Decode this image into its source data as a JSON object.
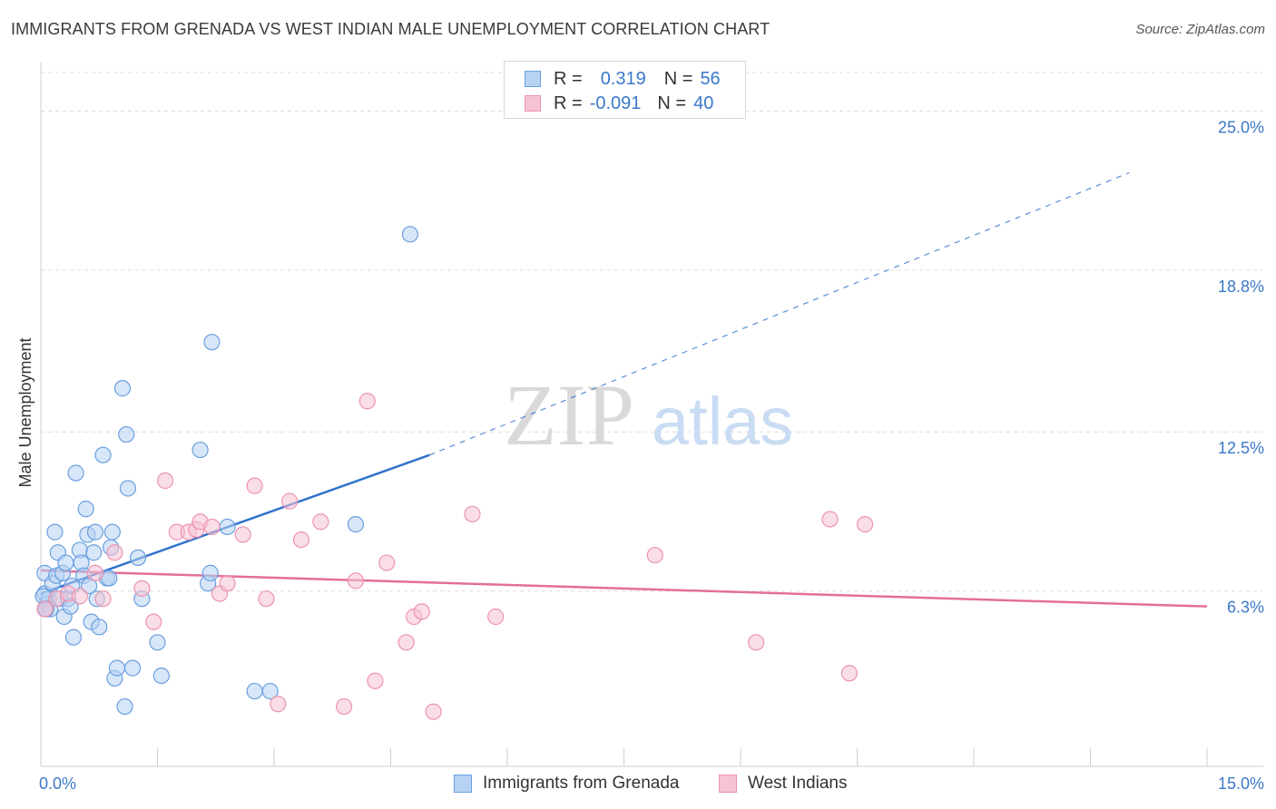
{
  "title": "IMMIGRANTS FROM GRENADA VS WEST INDIAN MALE UNEMPLOYMENT CORRELATION CHART",
  "source": "Source: ZipAtlas.com",
  "watermark": {
    "zip": "ZIP",
    "atlas": "atlas"
  },
  "legend": {
    "rows": [
      {
        "r_label": "R =",
        "r_value": "0.319",
        "n_label": "N =",
        "n_value": "56"
      },
      {
        "r_label": "R =",
        "r_value": "-0.091",
        "n_label": "N =",
        "n_value": "40"
      }
    ]
  },
  "bottom_legend": {
    "series1": "Immigrants from Grenada",
    "series2": "West Indians"
  },
  "colors": {
    "blue_fill": "#b7d2f3",
    "blue_stroke": "#6a9fe0",
    "blue_line": "#2f72cc",
    "pink_fill": "#f6c3d3",
    "pink_stroke": "#ec93b0",
    "pink_line": "#e36f9a",
    "tick_label": "#3b78c9",
    "grid": "#dcdcdc"
  },
  "chart_data": {
    "type": "scatter",
    "title": "IMMIGRANTS FROM GRENADA VS WEST INDIAN MALE UNEMPLOYMENT CORRELATION CHART",
    "xlabel": "",
    "ylabel": "Male Unemployment",
    "xlim": [
      0,
      15
    ],
    "ylim": [
      0,
      26.5
    ],
    "x_tick_labels": [
      "0.0%",
      "15.0%"
    ],
    "y_ticks": [
      6.3,
      12.5,
      18.8,
      25.0
    ],
    "y_tick_labels": [
      "6.3%",
      "12.5%",
      "18.8%",
      "25.0%"
    ],
    "grid": "horizontal dashed",
    "legend_position": "top-center",
    "series": [
      {
        "name": "Immigrants from Grenada",
        "R": 0.319,
        "N": 56,
        "points": [
          [
            0.05,
            7.0
          ],
          [
            0.05,
            6.2
          ],
          [
            0.08,
            5.8
          ],
          [
            0.1,
            6.0
          ],
          [
            0.12,
            5.6
          ],
          [
            0.15,
            6.6
          ],
          [
            0.18,
            8.6
          ],
          [
            0.2,
            6.9
          ],
          [
            0.22,
            7.8
          ],
          [
            0.25,
            6.0
          ],
          [
            0.28,
            7.0
          ],
          [
            0.3,
            5.3
          ],
          [
            0.32,
            7.4
          ],
          [
            0.35,
            6.0
          ],
          [
            0.38,
            5.7
          ],
          [
            0.4,
            6.5
          ],
          [
            0.42,
            4.5
          ],
          [
            0.45,
            10.9
          ],
          [
            0.5,
            7.9
          ],
          [
            0.52,
            7.4
          ],
          [
            0.55,
            6.9
          ],
          [
            0.58,
            9.5
          ],
          [
            0.6,
            8.5
          ],
          [
            0.62,
            6.5
          ],
          [
            0.65,
            5.1
          ],
          [
            0.68,
            7.8
          ],
          [
            0.7,
            8.6
          ],
          [
            0.72,
            6.0
          ],
          [
            0.75,
            4.9
          ],
          [
            0.8,
            11.6
          ],
          [
            0.85,
            6.8
          ],
          [
            0.88,
            6.8
          ],
          [
            0.9,
            8.0
          ],
          [
            0.92,
            8.6
          ],
          [
            0.95,
            2.9
          ],
          [
            0.98,
            3.3
          ],
          [
            1.05,
            14.2
          ],
          [
            1.08,
            1.8
          ],
          [
            1.1,
            12.4
          ],
          [
            1.12,
            10.3
          ],
          [
            1.18,
            3.3
          ],
          [
            1.25,
            7.6
          ],
          [
            1.3,
            6.0
          ],
          [
            1.5,
            4.3
          ],
          [
            1.55,
            3.0
          ],
          [
            2.05,
            11.8
          ],
          [
            2.15,
            6.6
          ],
          [
            2.18,
            7.0
          ],
          [
            2.2,
            16.0
          ],
          [
            2.4,
            8.8
          ],
          [
            2.75,
            2.4
          ],
          [
            2.95,
            2.4
          ],
          [
            4.05,
            8.9
          ],
          [
            4.75,
            20.2
          ],
          [
            0.03,
            6.1
          ],
          [
            0.07,
            5.6
          ]
        ],
        "trend": {
          "x_solid": [
            0,
            5.0
          ],
          "y_solid": [
            6.2,
            11.6
          ],
          "x_dashed": [
            5.0,
            14.0
          ],
          "y_dashed": [
            11.6,
            22.6
          ]
        }
      },
      {
        "name": "West Indians",
        "R": -0.091,
        "N": 40,
        "points": [
          [
            0.05,
            5.6
          ],
          [
            0.2,
            6.0
          ],
          [
            0.35,
            6.2
          ],
          [
            0.5,
            6.1
          ],
          [
            0.7,
            7.0
          ],
          [
            0.8,
            6.0
          ],
          [
            0.95,
            7.8
          ],
          [
            1.3,
            6.4
          ],
          [
            1.45,
            5.1
          ],
          [
            1.6,
            10.6
          ],
          [
            1.75,
            8.6
          ],
          [
            1.9,
            8.6
          ],
          [
            2.0,
            8.7
          ],
          [
            2.05,
            9.0
          ],
          [
            2.2,
            8.8
          ],
          [
            2.3,
            6.2
          ],
          [
            2.4,
            6.6
          ],
          [
            2.6,
            8.5
          ],
          [
            2.75,
            10.4
          ],
          [
            2.9,
            6.0
          ],
          [
            3.05,
            1.9
          ],
          [
            3.2,
            9.8
          ],
          [
            3.35,
            8.3
          ],
          [
            3.6,
            9.0
          ],
          [
            3.9,
            1.8
          ],
          [
            4.05,
            6.7
          ],
          [
            4.2,
            13.7
          ],
          [
            4.3,
            2.8
          ],
          [
            4.45,
            7.4
          ],
          [
            4.7,
            4.3
          ],
          [
            4.8,
            5.3
          ],
          [
            4.9,
            5.5
          ],
          [
            5.05,
            1.6
          ],
          [
            5.55,
            9.3
          ],
          [
            5.85,
            5.3
          ],
          [
            7.9,
            7.7
          ],
          [
            9.2,
            4.3
          ],
          [
            10.15,
            9.1
          ],
          [
            10.4,
            3.1
          ],
          [
            10.6,
            8.9
          ]
        ],
        "trend": {
          "x": [
            0,
            15.0
          ],
          "y": [
            7.1,
            5.7
          ]
        }
      }
    ]
  }
}
